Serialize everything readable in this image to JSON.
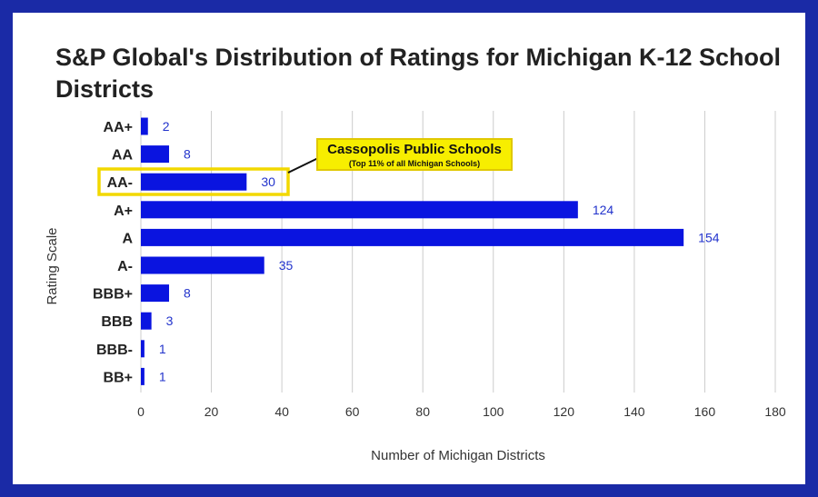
{
  "colors": {
    "frame": "#1a2aa6",
    "bar": "#0a14e0",
    "grid": "#cccccc",
    "highlight": "#f2d800",
    "callout_bg": "#f7ee00",
    "data_label": "#2233cc"
  },
  "chart_data": {
    "type": "bar",
    "orientation": "horizontal",
    "title": "S&P Global's Distribution of Ratings for Michigan K-12 School Districts",
    "xlabel": "Number of Michigan Districts",
    "ylabel": "Rating Scale",
    "categories": [
      "AA+",
      "AA",
      "AA-",
      "A+",
      "A",
      "A-",
      "BBB+",
      "BBB",
      "BBB-",
      "BB+"
    ],
    "values": [
      2,
      8,
      30,
      124,
      154,
      35,
      8,
      3,
      1,
      1
    ],
    "xlim": [
      0,
      180
    ],
    "xticks": [
      0,
      20,
      40,
      60,
      80,
      100,
      120,
      140,
      160,
      180
    ],
    "grid": "vertical",
    "legend": "none",
    "highlight_category": "AA-",
    "annotation": {
      "title": "Cassopolis Public Schools",
      "subtitle": "(Top 11% of all Michigan Schools)"
    }
  }
}
